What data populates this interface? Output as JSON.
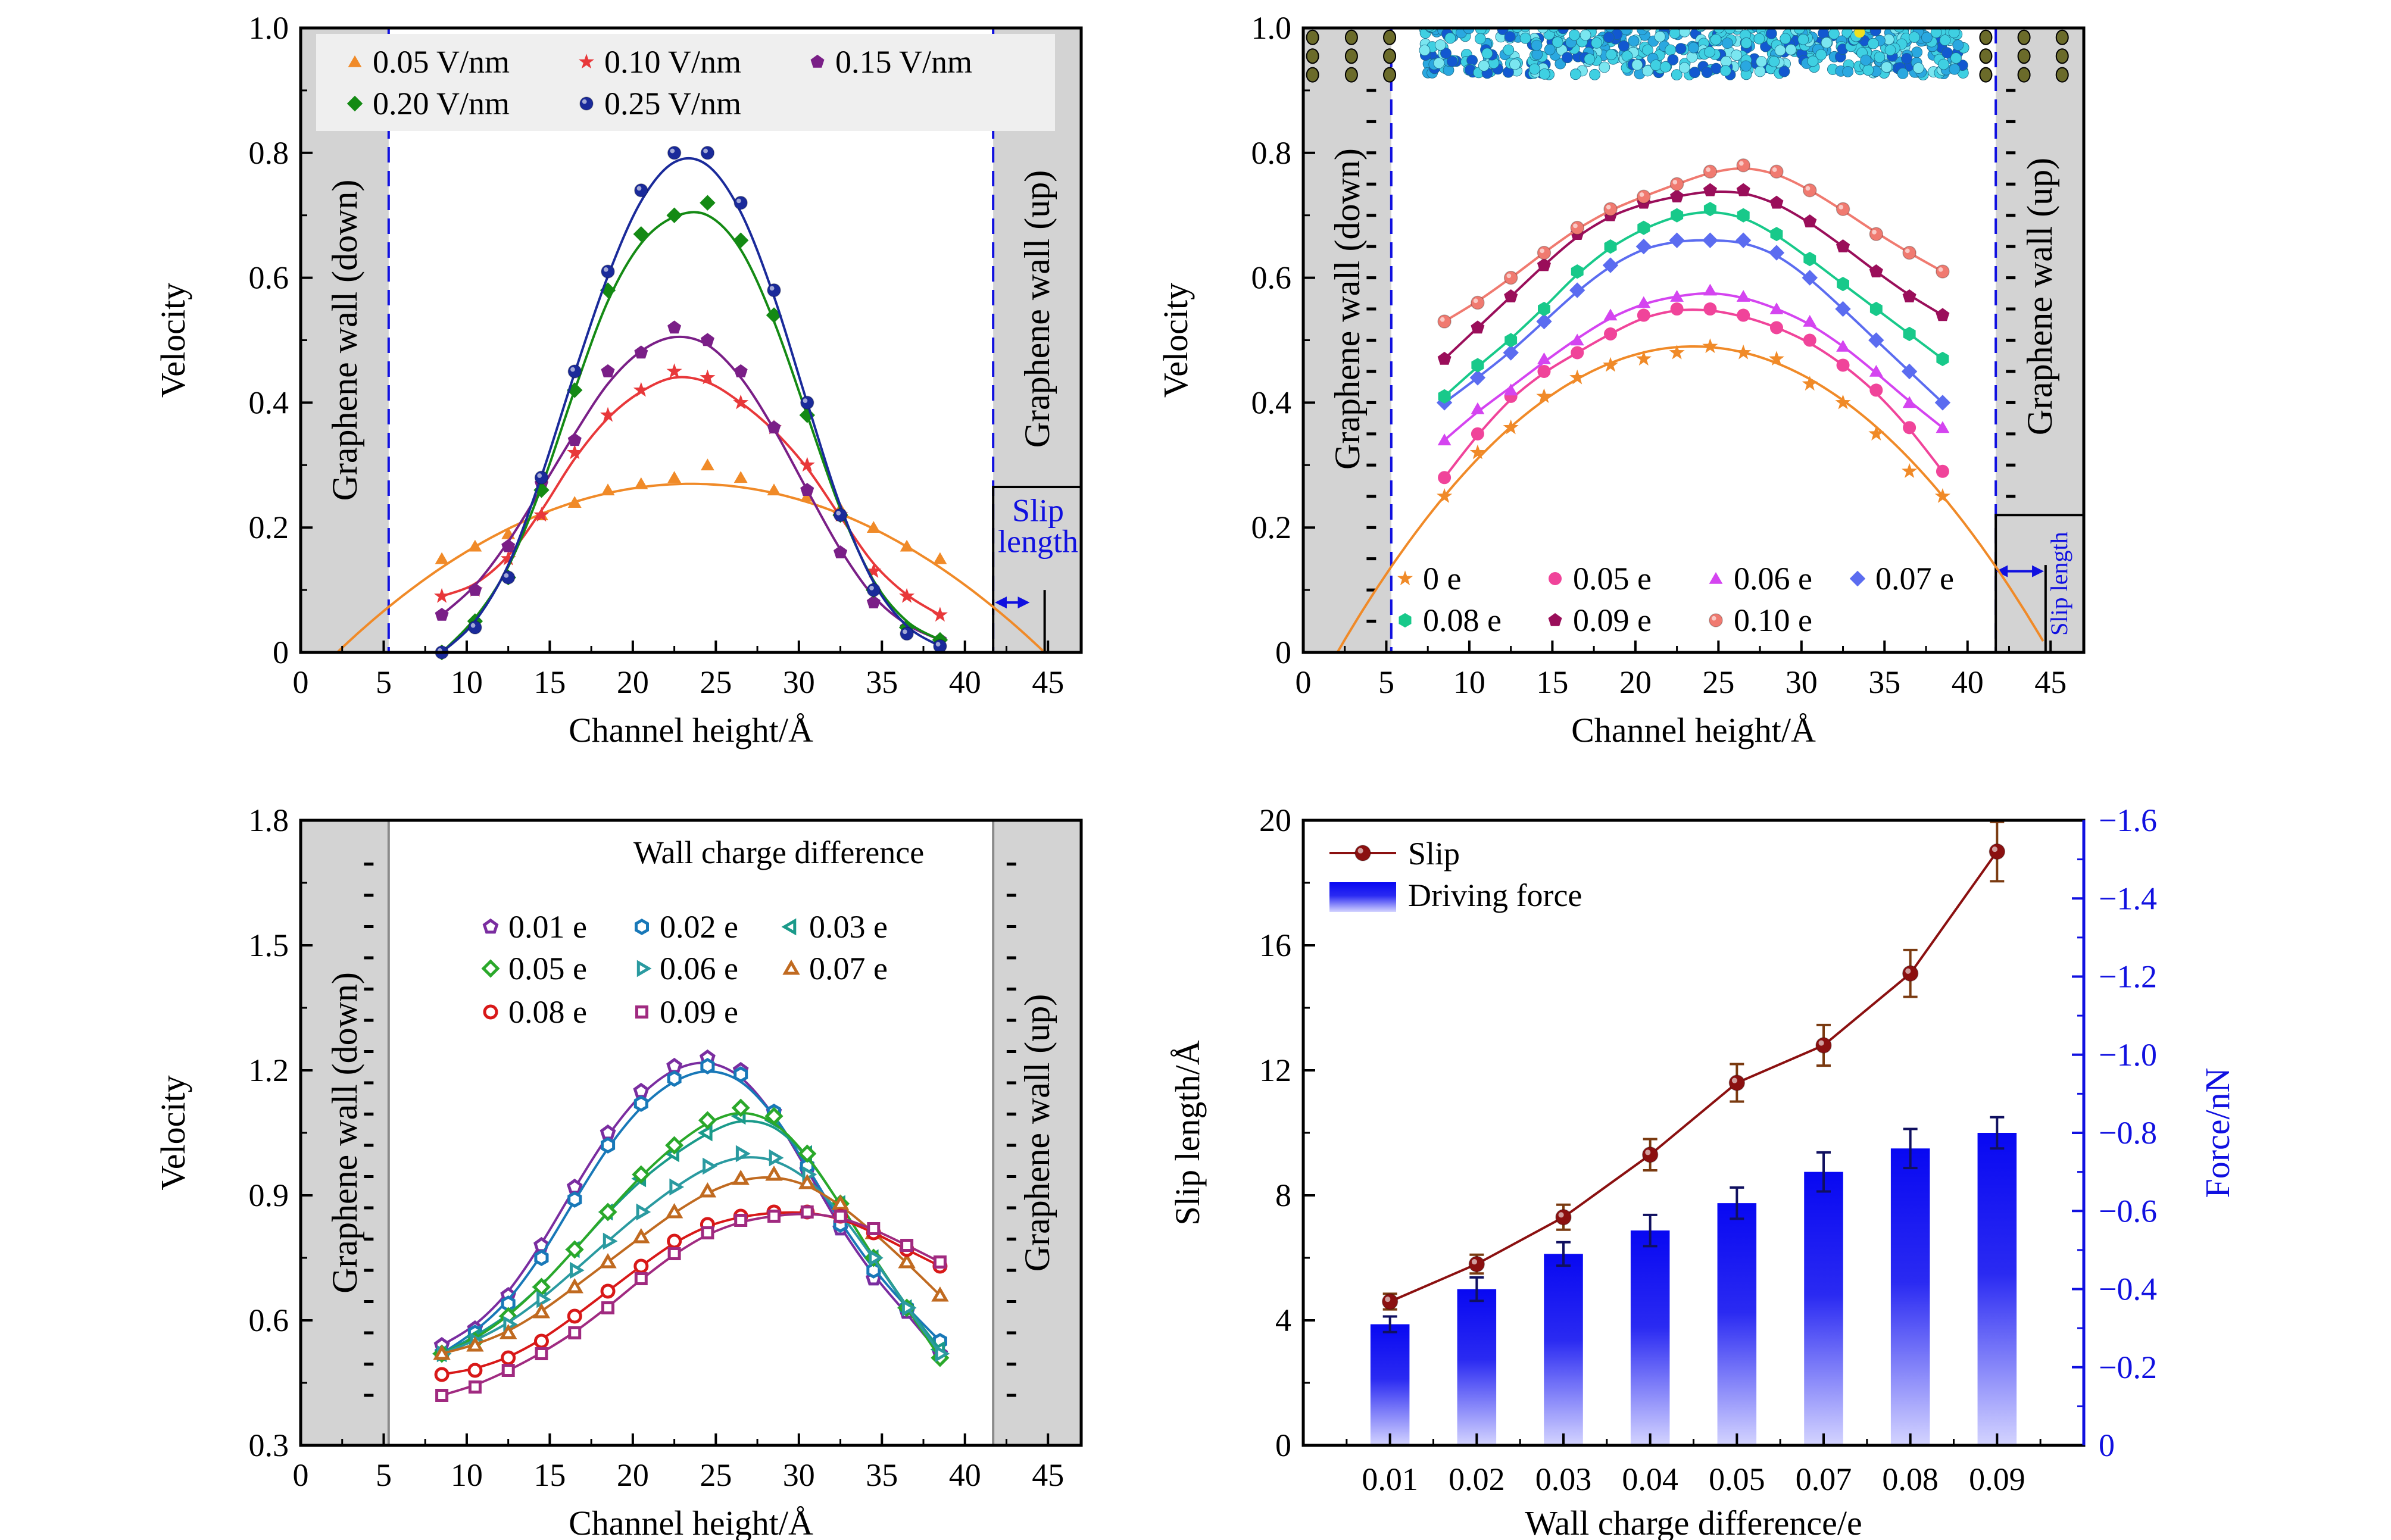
{
  "chart_data": [
    {
      "type": "scatter",
      "xlabel": "Channel height/Å",
      "ylabel": "Velocity",
      "xlim": [
        0,
        47
      ],
      "ylim": [
        0,
        1
      ],
      "xticks": [
        0,
        5,
        10,
        15,
        20,
        25,
        30,
        35,
        40,
        45
      ],
      "xtick_labels": [
        "0",
        "5",
        "10",
        "15",
        "20",
        "25",
        "30",
        "35",
        "40",
        "45"
      ],
      "yticks": [
        0,
        0.2,
        0.4,
        0.6,
        0.8,
        1.0
      ],
      "ytick_labels": [
        "0",
        "0.2",
        "0.4",
        "0.6",
        "0.8",
        "1.0"
      ],
      "walls": {
        "down": [
          0,
          5.3
        ],
        "up": [
          41.7,
          47
        ],
        "label_down": "Graphene wall (down)",
        "label_up": "Graphene wall (up)"
      },
      "slip_annotation": {
        "lines": [
          "Slip",
          "length"
        ]
      },
      "legend_location": "top",
      "x": [
        8.5,
        10.5,
        12.5,
        14.5,
        16.5,
        18.5,
        20.5,
        22.5,
        24.5,
        26.5,
        28.5,
        30.5,
        32.5,
        34.5,
        36.5,
        38.5
      ],
      "series": [
        {
          "name": "0.05 V/nm",
          "color": "#f08a28",
          "marker": "triangle",
          "values": [
            0.15,
            0.17,
            0.19,
            0.22,
            0.24,
            0.26,
            0.27,
            0.28,
            0.3,
            0.28,
            0.26,
            0.25,
            0.23,
            0.2,
            0.17,
            0.15
          ],
          "fit": {
            "type": "parabola",
            "vertex": [
              23.5,
              0.27
            ],
            "roots": [
              2.2,
              44.8
            ]
          }
        },
        {
          "name": "0.10 V/nm",
          "color": "#e8383a",
          "marker": "star",
          "values": [
            0.09,
            0.1,
            0.15,
            0.22,
            0.32,
            0.38,
            0.42,
            0.45,
            0.44,
            0.4,
            0.36,
            0.3,
            0.22,
            0.13,
            0.09,
            0.06
          ]
        },
        {
          "name": "0.15 V/nm",
          "color": "#7a1f87",
          "marker": "pentagon",
          "values": [
            0.06,
            0.1,
            0.17,
            0.27,
            0.34,
            0.45,
            0.48,
            0.52,
            0.5,
            0.45,
            0.36,
            0.26,
            0.16,
            0.08,
            0.04,
            0.02
          ]
        },
        {
          "name": "0.20 V/nm",
          "color": "#148a14",
          "marker": "diamond",
          "values": [
            0.0,
            0.05,
            0.12,
            0.26,
            0.42,
            0.58,
            0.67,
            0.7,
            0.72,
            0.66,
            0.54,
            0.38,
            0.22,
            0.1,
            0.04,
            0.02
          ]
        },
        {
          "name": "0.25 V/nm",
          "color": "#1a2a9a",
          "marker": "ball",
          "values": [
            0.0,
            0.04,
            0.12,
            0.28,
            0.45,
            0.61,
            0.74,
            0.8,
            0.8,
            0.72,
            0.58,
            0.4,
            0.22,
            0.1,
            0.03,
            0.01
          ]
        }
      ]
    },
    {
      "type": "scatter",
      "xlabel": "Channel height/Å",
      "ylabel": "Velocity",
      "xlim": [
        0,
        47
      ],
      "ylim": [
        0,
        1
      ],
      "xticks": [
        0,
        5,
        10,
        15,
        20,
        25,
        30,
        35,
        40,
        45
      ],
      "xtick_labels": [
        "0",
        "5",
        "10",
        "15",
        "20",
        "25",
        "30",
        "35",
        "40",
        "45"
      ],
      "yticks": [
        0,
        0.2,
        0.4,
        0.6,
        0.8,
        1.0
      ],
      "ytick_labels": [
        "0",
        "0.2",
        "0.4",
        "0.6",
        "0.8",
        "1.0"
      ],
      "walls": {
        "down": [
          0,
          5.3
        ],
        "up": [
          41.7,
          47
        ],
        "label_down": "Graphene wall (down)",
        "label_up": "Graphene wall (up)"
      },
      "slip_annotation": {
        "lines": [
          "Slip length"
        ]
      },
      "legend_location": "bottom",
      "x": [
        8.5,
        10.5,
        12.5,
        14.5,
        16.5,
        18.5,
        20.5,
        22.5,
        24.5,
        26.5,
        28.5,
        30.5,
        32.5,
        34.5,
        36.5,
        38.5
      ],
      "series": [
        {
          "name": "0 e",
          "color": "#f08a28",
          "marker": "star",
          "values": [
            0.25,
            0.32,
            0.36,
            0.41,
            0.44,
            0.46,
            0.47,
            0.48,
            0.49,
            0.48,
            0.47,
            0.43,
            0.4,
            0.35,
            0.29,
            0.25
          ],
          "fit": {
            "type": "parabola",
            "vertex": [
              23.5,
              0.49
            ],
            "roots": [
              1.8,
              44.7
            ]
          }
        },
        {
          "name": "0.05 e",
          "color": "#f0449a",
          "marker": "circle",
          "values": [
            0.28,
            0.35,
            0.41,
            0.45,
            0.48,
            0.51,
            0.54,
            0.55,
            0.55,
            0.54,
            0.52,
            0.5,
            0.46,
            0.42,
            0.36,
            0.29
          ]
        },
        {
          "name": "0.06 e",
          "color": "#d444f0",
          "marker": "triangle",
          "values": [
            0.34,
            0.39,
            0.42,
            0.47,
            0.5,
            0.54,
            0.56,
            0.57,
            0.58,
            0.57,
            0.55,
            0.53,
            0.49,
            0.45,
            0.4,
            0.36
          ]
        },
        {
          "name": "0.07 e",
          "color": "#5b6cf0",
          "marker": "diamond",
          "values": [
            0.4,
            0.44,
            0.48,
            0.53,
            0.58,
            0.62,
            0.65,
            0.66,
            0.66,
            0.66,
            0.64,
            0.6,
            0.55,
            0.5,
            0.45,
            0.4
          ]
        },
        {
          "name": "0.08 e",
          "color": "#18c98a",
          "marker": "hexagon",
          "values": [
            0.41,
            0.46,
            0.5,
            0.55,
            0.61,
            0.65,
            0.68,
            0.7,
            0.71,
            0.7,
            0.67,
            0.63,
            0.59,
            0.55,
            0.51,
            0.47
          ]
        },
        {
          "name": "0.09 e",
          "color": "#9a0e5a",
          "marker": "pentagon",
          "values": [
            0.47,
            0.52,
            0.57,
            0.62,
            0.67,
            0.7,
            0.72,
            0.73,
            0.74,
            0.74,
            0.72,
            0.69,
            0.65,
            0.61,
            0.57,
            0.54
          ]
        },
        {
          "name": "0.10 e",
          "color": "#f07a70",
          "marker": "ball",
          "values": [
            0.53,
            0.56,
            0.6,
            0.64,
            0.68,
            0.71,
            0.73,
            0.75,
            0.77,
            0.78,
            0.77,
            0.74,
            0.71,
            0.67,
            0.64,
            0.61
          ]
        }
      ]
    },
    {
      "type": "scatter",
      "xlabel": "Channel height/Å",
      "ylabel": "Velocity",
      "xlim": [
        0,
        47
      ],
      "ylim": [
        0.3,
        1.8
      ],
      "xticks": [
        0,
        5,
        10,
        15,
        20,
        25,
        30,
        35,
        40,
        45
      ],
      "xtick_labels": [
        "0",
        "5",
        "10",
        "15",
        "20",
        "25",
        "30",
        "35",
        "40",
        "45"
      ],
      "yticks": [
        0.3,
        0.6,
        0.9,
        1.2,
        1.5,
        1.8
      ],
      "ytick_labels": [
        "0.3",
        "0.6",
        "0.9",
        "1.2",
        "1.5",
        "1.8"
      ],
      "walls": {
        "down": [
          0,
          5.3
        ],
        "up": [
          41.7,
          47
        ],
        "label_down": "Graphene wall (down)",
        "label_up": "Graphene wall (up)"
      },
      "legend_title": "Wall charge difference",
      "legend_location": "top-center",
      "x": [
        8.5,
        10.5,
        12.5,
        14.5,
        16.5,
        18.5,
        20.5,
        22.5,
        24.5,
        26.5,
        28.5,
        30.5,
        32.5,
        34.5,
        36.5,
        38.5
      ],
      "series": [
        {
          "name": "0.01 e",
          "color": "#7a2da0",
          "marker": "pentagon",
          "values": [
            0.54,
            0.58,
            0.66,
            0.78,
            0.92,
            1.05,
            1.15,
            1.21,
            1.23,
            1.2,
            1.1,
            0.96,
            0.82,
            0.7,
            0.62,
            0.52
          ]
        },
        {
          "name": "0.02 e",
          "color": "#1878b8",
          "marker": "hexagon",
          "values": [
            0.52,
            0.57,
            0.64,
            0.75,
            0.89,
            1.02,
            1.12,
            1.18,
            1.21,
            1.19,
            1.1,
            0.97,
            0.83,
            0.72,
            0.63,
            0.55
          ]
        },
        {
          "name": "0.03 e",
          "color": "#1a9a8a",
          "marker": "tri-left",
          "values": [
            0.52,
            0.56,
            0.61,
            0.68,
            0.77,
            0.86,
            0.94,
            1.0,
            1.05,
            1.09,
            1.08,
            1.0,
            0.88,
            0.75,
            0.63,
            0.53
          ]
        },
        {
          "name": "0.05 e",
          "color": "#2aa82a",
          "marker": "diamond",
          "values": [
            0.52,
            0.55,
            0.61,
            0.68,
            0.77,
            0.86,
            0.95,
            1.02,
            1.08,
            1.11,
            1.09,
            1.0,
            0.88,
            0.75,
            0.63,
            0.51
          ]
        },
        {
          "name": "0.06 e",
          "color": "#2a9aa0",
          "marker": "tri-right",
          "values": [
            0.52,
            0.55,
            0.59,
            0.65,
            0.72,
            0.79,
            0.86,
            0.92,
            0.97,
            1.0,
            0.99,
            0.95,
            0.86,
            0.75,
            0.63,
            0.52
          ]
        },
        {
          "name": "0.07 e",
          "color": "#c06a20",
          "marker": "triangle",
          "values": [
            0.52,
            0.54,
            0.57,
            0.62,
            0.68,
            0.74,
            0.8,
            0.86,
            0.91,
            0.94,
            0.95,
            0.93,
            0.88,
            0.81,
            0.74,
            0.66
          ]
        },
        {
          "name": "0.08 e",
          "color": "#d81818",
          "marker": "circle",
          "values": [
            0.47,
            0.48,
            0.51,
            0.55,
            0.61,
            0.67,
            0.73,
            0.79,
            0.83,
            0.85,
            0.86,
            0.86,
            0.85,
            0.81,
            0.77,
            0.73
          ]
        },
        {
          "name": "0.09 e",
          "color": "#a02a80",
          "marker": "square",
          "values": [
            0.42,
            0.44,
            0.48,
            0.52,
            0.57,
            0.63,
            0.7,
            0.76,
            0.81,
            0.84,
            0.85,
            0.86,
            0.85,
            0.82,
            0.78,
            0.74
          ]
        }
      ]
    },
    {
      "type": "bar+line",
      "xlabel": "Wall charge difference/e",
      "ylabel": "Slip length/Å",
      "y2label": "Force/nN",
      "categories": [
        "0.01",
        "0.02",
        "0.03",
        "0.04",
        "0.05",
        "0.07",
        "0.08",
        "0.09"
      ],
      "xlim": [
        0,
        9
      ],
      "ylim": [
        0,
        20
      ],
      "yticks": [
        0,
        4,
        8,
        12,
        16,
        20
      ],
      "ytick_labels": [
        "0",
        "4",
        "8",
        "12",
        "16",
        "20"
      ],
      "y2lim": [
        0,
        -1.6
      ],
      "y2ticks": [
        0,
        -0.2,
        -0.4,
        -0.6,
        -0.8,
        -1.0,
        -1.2,
        -1.4,
        -1.6
      ],
      "y2tick_labels": [
        "0",
        "−0.2",
        "−0.4",
        "−0.6",
        "−0.8",
        "−1.0",
        "−1.2",
        "−1.4",
        "−1.6"
      ],
      "legend_location": "top-left",
      "series": [
        {
          "name": "Slip",
          "type": "line",
          "axis": "left",
          "color": "#8b1010",
          "error_color": "#7a3a10",
          "values": [
            4.6,
            5.8,
            7.3,
            9.3,
            11.6,
            12.8,
            15.1,
            19.0
          ],
          "errors": [
            0.25,
            0.3,
            0.4,
            0.5,
            0.6,
            0.65,
            0.75,
            0.95
          ]
        },
        {
          "name": "Driving force",
          "type": "bar",
          "axis": "right",
          "color": "#0a0af0",
          "values": [
            -0.31,
            -0.4,
            -0.49,
            -0.55,
            -0.62,
            -0.7,
            -0.76,
            -0.8
          ],
          "errors": [
            0.02,
            0.03,
            0.03,
            0.04,
            0.04,
            0.05,
            0.05,
            0.04
          ]
        }
      ]
    }
  ]
}
